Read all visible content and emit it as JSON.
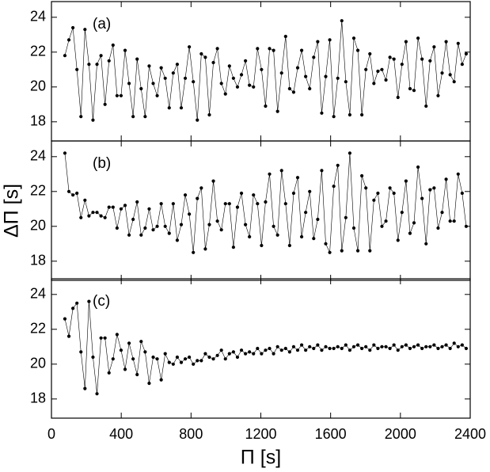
{
  "chart_data": [
    {
      "type": "line",
      "label": "(a)",
      "color": "#000000",
      "xlim": [
        0,
        2400
      ],
      "ylim": [
        16.9,
        24.9
      ],
      "xticks": [
        0,
        400,
        800,
        1200,
        1600,
        2000,
        2400
      ],
      "yticks": [
        18,
        20,
        22,
        24
      ],
      "x": [
        77,
        100,
        123,
        146,
        169,
        192,
        215,
        238,
        261,
        284,
        307,
        330,
        353,
        376,
        399,
        422,
        445,
        468,
        491,
        514,
        537,
        560,
        583,
        606,
        629,
        652,
        675,
        698,
        721,
        744,
        767,
        790,
        813,
        836,
        859,
        882,
        905,
        928,
        951,
        974,
        997,
        1020,
        1043,
        1066,
        1089,
        1112,
        1135,
        1158,
        1181,
        1204,
        1227,
        1250,
        1273,
        1296,
        1319,
        1342,
        1365,
        1388,
        1411,
        1434,
        1457,
        1480,
        1503,
        1526,
        1549,
        1572,
        1595,
        1618,
        1641,
        1664,
        1687,
        1710,
        1733,
        1756,
        1779,
        1802,
        1825,
        1848,
        1871,
        1894,
        1917,
        1940,
        1963,
        1986,
        2009,
        2032,
        2055,
        2078,
        2101,
        2124,
        2147,
        2170,
        2193,
        2216,
        2239,
        2262,
        2285,
        2308,
        2331,
        2354,
        2377
      ],
      "values": [
        21.8,
        22.7,
        23.4,
        21.0,
        18.3,
        23.3,
        21.3,
        18.1,
        21.3,
        21.8,
        19.0,
        21.5,
        22.4,
        19.5,
        19.5,
        22.1,
        20.2,
        18.3,
        21.6,
        19.9,
        18.3,
        21.2,
        20.2,
        19.5,
        21.1,
        20.5,
        18.8,
        20.8,
        21.3,
        18.8,
        20.5,
        22.3,
        20.3,
        18.1,
        21.9,
        21.7,
        18.4,
        21.4,
        22.2,
        20.2,
        19.6,
        21.2,
        20.5,
        20.0,
        20.7,
        21.5,
        20.1,
        20.0,
        22.2,
        21.0,
        18.9,
        22.2,
        22.1,
        18.6,
        20.8,
        22.9,
        19.9,
        19.7,
        21.1,
        22.1,
        20.6,
        19.9,
        21.7,
        22.6,
        18.5,
        20.6,
        22.7,
        18.3,
        20.5,
        23.8,
        20.3,
        18.4,
        22.8,
        22.1,
        18.4,
        21.0,
        21.9,
        20.2,
        20.9,
        21.0,
        20.4,
        21.7,
        21.6,
        19.4,
        21.3,
        22.6,
        19.9,
        19.8,
        22.8,
        21.6,
        18.9,
        21.5,
        22.3,
        19.5,
        20.8,
        22.6,
        20.7,
        20.3,
        22.5,
        21.3,
        21.9
      ]
    },
    {
      "type": "line",
      "label": "(b)",
      "ylabel": "ΔΠ [s]",
      "color": "#000000",
      "xlim": [
        0,
        2400
      ],
      "ylim": [
        16.9,
        24.9
      ],
      "xticks": [
        0,
        400,
        800,
        1200,
        1600,
        2000,
        2400
      ],
      "yticks": [
        18,
        20,
        22,
        24
      ],
      "x": [
        77,
        100,
        123,
        146,
        169,
        192,
        215,
        238,
        261,
        284,
        307,
        330,
        353,
        376,
        399,
        422,
        445,
        468,
        491,
        514,
        537,
        560,
        583,
        606,
        629,
        652,
        675,
        698,
        721,
        744,
        767,
        790,
        813,
        836,
        859,
        882,
        905,
        928,
        951,
        974,
        997,
        1020,
        1043,
        1066,
        1089,
        1112,
        1135,
        1158,
        1181,
        1204,
        1227,
        1250,
        1273,
        1296,
        1319,
        1342,
        1365,
        1388,
        1411,
        1434,
        1457,
        1480,
        1503,
        1526,
        1549,
        1572,
        1595,
        1618,
        1641,
        1664,
        1687,
        1710,
        1733,
        1756,
        1779,
        1802,
        1825,
        1848,
        1871,
        1894,
        1917,
        1940,
        1963,
        1986,
        2009,
        2032,
        2055,
        2078,
        2101,
        2124,
        2147,
        2170,
        2193,
        2216,
        2239,
        2262,
        2285,
        2308,
        2331,
        2354,
        2377
      ],
      "values": [
        24.2,
        22.0,
        21.8,
        21.9,
        20.5,
        21.5,
        20.6,
        20.8,
        20.8,
        20.6,
        20.5,
        21.1,
        21.1,
        19.9,
        21.0,
        21.2,
        19.5,
        20.4,
        21.4,
        19.5,
        19.9,
        21.0,
        19.8,
        20.0,
        21.3,
        20.0,
        19.6,
        21.3,
        19.2,
        20.1,
        21.8,
        20.7,
        18.5,
        21.6,
        22.2,
        18.7,
        20.1,
        22.6,
        20.3,
        19.8,
        21.3,
        21.3,
        18.8,
        21.1,
        21.9,
        20.1,
        19.4,
        21.8,
        21.3,
        18.9,
        21.4,
        23.0,
        20.0,
        19.5,
        23.2,
        21.3,
        18.9,
        21.9,
        22.8,
        19.4,
        20.8,
        22.0,
        19.3,
        20.4,
        23.2,
        19.0,
        18.5,
        22.3,
        23.5,
        18.6,
        20.5,
        24.2,
        19.9,
        18.6,
        22.9,
        22.2,
        18.6,
        21.5,
        21.9,
        20.0,
        20.3,
        22.2,
        21.9,
        19.2,
        20.8,
        22.6,
        19.6,
        20.2,
        23.4,
        21.6,
        19.0,
        22.1,
        22.2,
        19.9,
        20.8,
        22.7,
        20.3,
        20.3,
        23.0,
        21.9,
        20.0
      ]
    },
    {
      "type": "line",
      "label": "(c)",
      "xlabel": "Π [s]",
      "color": "#000000",
      "xlim": [
        0,
        2400
      ],
      "ylim": [
        16.9,
        24.9
      ],
      "xticks": [
        0,
        400,
        800,
        1200,
        1600,
        2000,
        2400
      ],
      "yticks": [
        18,
        20,
        22,
        24
      ],
      "x": [
        77,
        100,
        123,
        146,
        169,
        192,
        215,
        238,
        261,
        284,
        307,
        330,
        353,
        376,
        399,
        422,
        445,
        468,
        491,
        514,
        537,
        560,
        583,
        606,
        629,
        652,
        675,
        698,
        721,
        744,
        767,
        790,
        813,
        836,
        859,
        882,
        905,
        928,
        951,
        974,
        997,
        1020,
        1043,
        1066,
        1089,
        1112,
        1135,
        1158,
        1181,
        1204,
        1227,
        1250,
        1273,
        1296,
        1319,
        1342,
        1365,
        1388,
        1411,
        1434,
        1457,
        1480,
        1503,
        1526,
        1549,
        1572,
        1595,
        1618,
        1641,
        1664,
        1687,
        1710,
        1733,
        1756,
        1779,
        1802,
        1825,
        1848,
        1871,
        1894,
        1917,
        1940,
        1963,
        1986,
        2009,
        2032,
        2055,
        2078,
        2101,
        2124,
        2147,
        2170,
        2193,
        2216,
        2239,
        2262,
        2285,
        2308,
        2331,
        2354,
        2377
      ],
      "values": [
        22.6,
        21.6,
        23.2,
        23.5,
        20.7,
        18.6,
        23.6,
        20.4,
        18.3,
        21.5,
        21.5,
        19.5,
        20.3,
        21.7,
        20.8,
        19.7,
        21.2,
        20.3,
        19.4,
        21.3,
        20.7,
        18.9,
        20.4,
        20.3,
        19.1,
        20.6,
        20.1,
        20.0,
        20.4,
        20.1,
        20.3,
        20.4,
        20.0,
        20.2,
        20.2,
        20.6,
        20.4,
        20.3,
        20.5,
        20.8,
        20.3,
        20.6,
        20.7,
        20.4,
        20.8,
        20.6,
        20.7,
        20.6,
        20.9,
        20.6,
        20.8,
        20.9,
        20.6,
        21.0,
        20.8,
        20.9,
        20.7,
        21.0,
        20.8,
        21.1,
        20.8,
        21.0,
        20.9,
        21.1,
        20.8,
        21.0,
        20.9,
        20.9,
        21.0,
        20.9,
        21.1,
        20.8,
        21.0,
        21.1,
        20.9,
        21.0,
        20.8,
        21.1,
        20.9,
        21.0,
        21.0,
        20.9,
        21.1,
        20.8,
        21.0,
        21.1,
        20.9,
        21.0,
        21.1,
        20.9,
        21.0,
        21.0,
        21.1,
        20.9,
        21.0,
        21.1,
        20.9,
        21.2,
        21.0,
        21.1,
        20.9
      ]
    }
  ]
}
